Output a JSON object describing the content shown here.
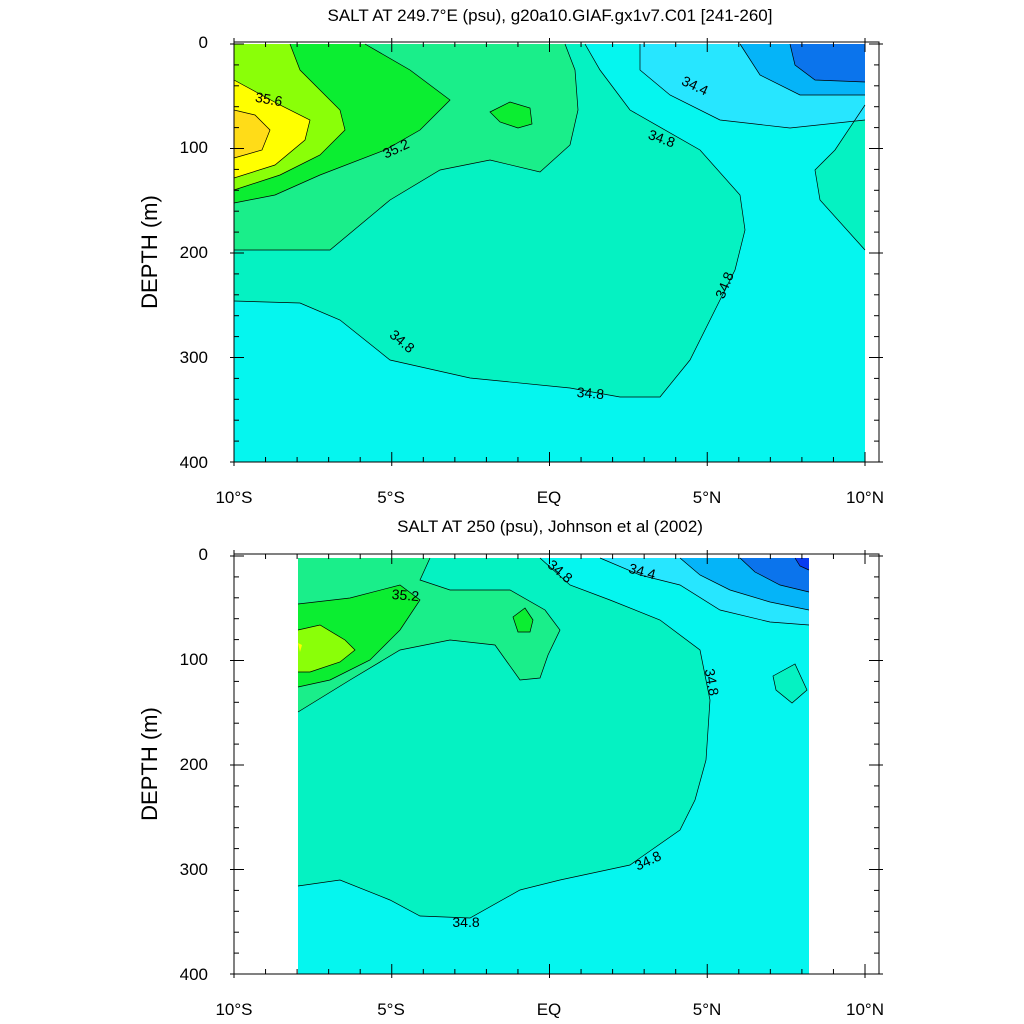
{
  "chart_data": [
    {
      "type": "contour",
      "title": "SALT AT 249.7°E (psu), g20a10.GIAF.gx1v7.C01 [241-260]",
      "ylabel": "DEPTH (m)",
      "xlabel": "",
      "xlim": [
        -10,
        10
      ],
      "ylim": [
        400,
        0
      ],
      "y_reversed": true,
      "x_ticks": [
        -10,
        -5,
        0,
        5,
        10
      ],
      "x_tick_labels": [
        "10°S",
        "5°S",
        "EQ",
        "5°N",
        "10°N"
      ],
      "y_ticks": [
        0,
        100,
        200,
        300,
        400
      ],
      "y_tick_labels": [
        "0",
        "100",
        "200",
        "300",
        "400"
      ],
      "contour_interval": 0.2,
      "contour_labels": [
        "35.6",
        "35.2",
        "34.4",
        "34.8",
        "34.8",
        "34.8",
        "34.8"
      ],
      "legend": "none",
      "grid": false
    },
    {
      "type": "contour",
      "title": "SALT AT 250 (psu), Johnson et al (2002)",
      "ylabel": "DEPTH (m)",
      "xlabel": "",
      "xlim": [
        -10,
        10
      ],
      "ylim": [
        400,
        0
      ],
      "y_reversed": true,
      "data_extent_x": [
        -8,
        8.3
      ],
      "data_extent_y": [
        5,
        400
      ],
      "x_ticks": [
        -10,
        -5,
        0,
        5,
        10
      ],
      "x_tick_labels": [
        "10°S",
        "5°S",
        "EQ",
        "5°N",
        "10°N"
      ],
      "y_ticks": [
        0,
        100,
        200,
        300,
        400
      ],
      "y_tick_labels": [
        "0",
        "100",
        "200",
        "300",
        "400"
      ],
      "contour_interval": 0.2,
      "contour_labels": [
        "35.2",
        "34.8",
        "34.4",
        "34.8",
        "34.8",
        "34.8"
      ],
      "legend": "none",
      "grid": false
    }
  ],
  "colors": {
    "s33_8": "#0a3cf0",
    "s34_0": "#0b74ec",
    "s34_2": "#05b4f8",
    "s34_4": "#27e6ff",
    "s34_6": "#05f6ef",
    "s34_8": "#05f2c2",
    "s35_0": "#1aee8a",
    "s35_2": "#0bee31",
    "s35_4": "#8aff08",
    "s35_6": "#ffff00",
    "s35_8": "#ffdc18"
  }
}
